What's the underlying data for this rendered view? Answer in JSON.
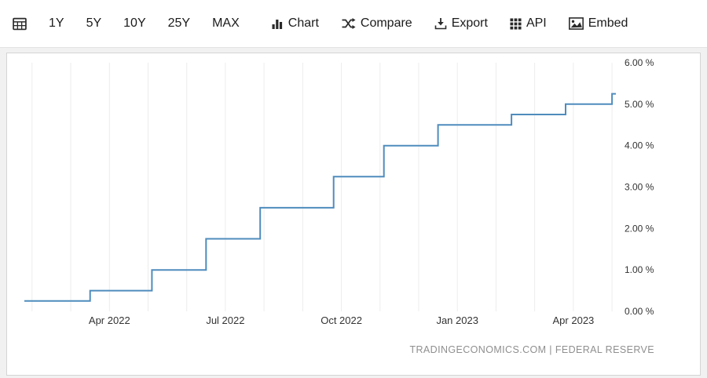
{
  "toolbar": {
    "calendar_button": {
      "icon": "calendar-icon"
    },
    "range_buttons": [
      {
        "label": "1Y"
      },
      {
        "label": "5Y"
      },
      {
        "label": "10Y"
      },
      {
        "label": "25Y"
      },
      {
        "label": "MAX"
      }
    ],
    "action_buttons": [
      {
        "label": "Chart",
        "icon": "bar-chart-icon"
      },
      {
        "label": "Compare",
        "icon": "compare-shuffle-icon"
      },
      {
        "label": "Export",
        "icon": "export-download-icon"
      },
      {
        "label": "API",
        "icon": "api-grid-icon"
      },
      {
        "label": "Embed",
        "icon": "embed-image-icon"
      }
    ]
  },
  "colors": {
    "line": "#4f8cbd",
    "grid": "#ececec",
    "axis_text": "#333333",
    "attribution_text": "#8f8f8f"
  },
  "chart_data": {
    "type": "line",
    "subtype": "step",
    "title": "",
    "x_unit": "months since 2022-01",
    "xlim": [
      0.8,
      16.1
    ],
    "ylim": [
      0,
      6
    ],
    "grid": "vertical-only",
    "legend": "none",
    "y_axis_side": "right",
    "series": [
      {
        "name": "",
        "color": "#4f8cbd",
        "points": [
          [
            0.8,
            0.25
          ],
          [
            2.5,
            0.25
          ],
          [
            2.5,
            0.5
          ],
          [
            4.1,
            0.5
          ],
          [
            4.1,
            1.0
          ],
          [
            5.5,
            1.0
          ],
          [
            5.5,
            1.75
          ],
          [
            6.9,
            1.75
          ],
          [
            6.9,
            2.5
          ],
          [
            8.8,
            2.5
          ],
          [
            8.8,
            3.25
          ],
          [
            10.1,
            3.25
          ],
          [
            10.1,
            4.0
          ],
          [
            11.5,
            4.0
          ],
          [
            11.5,
            4.5
          ],
          [
            13.4,
            4.5
          ],
          [
            13.4,
            4.75
          ],
          [
            14.8,
            4.75
          ],
          [
            14.8,
            5.0
          ],
          [
            16.0,
            5.0
          ],
          [
            16.0,
            5.25
          ],
          [
            16.1,
            5.25
          ]
        ]
      }
    ],
    "x_gridlines": [
      1,
      2,
      3,
      4,
      5,
      6,
      7,
      8,
      9,
      10,
      11,
      12,
      13,
      14,
      15,
      16
    ],
    "x_ticks": [
      {
        "value": 3,
        "label": "Apr 2022"
      },
      {
        "value": 6,
        "label": "Jul 2022"
      },
      {
        "value": 9,
        "label": "Oct 2022"
      },
      {
        "value": 12,
        "label": "Jan 2023"
      },
      {
        "value": 15,
        "label": "Apr 2023"
      }
    ],
    "y_ticks": [
      {
        "value": 0,
        "label": "0.00 %"
      },
      {
        "value": 1,
        "label": "1.00 %"
      },
      {
        "value": 2,
        "label": "2.00 %"
      },
      {
        "value": 3,
        "label": "3.00 %"
      },
      {
        "value": 4,
        "label": "4.00 %"
      },
      {
        "value": 5,
        "label": "5.00 %"
      },
      {
        "value": 6,
        "label": "6.00 %"
      }
    ],
    "attribution": "TRADINGECONOMICS.COM | FEDERAL RESERVE"
  }
}
